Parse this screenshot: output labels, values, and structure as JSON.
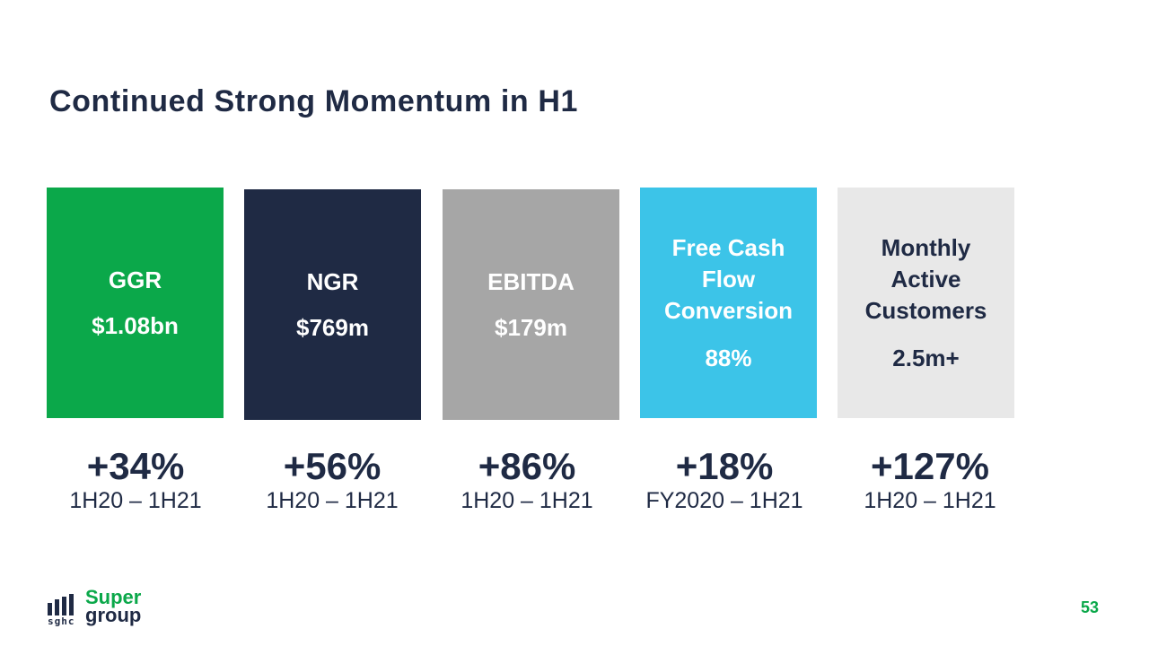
{
  "slide": {
    "title": "Continued Strong Momentum in H1",
    "page_number": "53"
  },
  "cards": [
    {
      "label": "GGR",
      "value": "$1.08bn",
      "change": "+34%",
      "period": "1H20 – 1H21",
      "bg": "#0ba84a",
      "fg": "#ffffff"
    },
    {
      "label": "NGR",
      "value": "$769m",
      "change": "+56%",
      "period": "1H20 – 1H21",
      "bg": "#1f2a44",
      "fg": "#ffffff"
    },
    {
      "label": "EBITDA",
      "value": "$179m",
      "change": "+86%",
      "period": "1H20 – 1H21",
      "bg": "#a6a6a6",
      "fg": "#ffffff"
    },
    {
      "label_lines": [
        "Free Cash",
        "Flow",
        "Conversion"
      ],
      "value": "88%",
      "change": "+18%",
      "period": "FY2020 – 1H21",
      "bg": "#3cc4e8",
      "fg": "#ffffff"
    },
    {
      "label_lines": [
        "Monthly",
        "Active",
        "Customers"
      ],
      "value": "2.5m+",
      "change": "+127%",
      "period": "1H20 – 1H21",
      "bg": "#e8e8e8",
      "fg": "#1f2a44"
    }
  ],
  "logo": {
    "brand_top": "Super",
    "brand_bottom": "group",
    "ticker": "sghc"
  }
}
